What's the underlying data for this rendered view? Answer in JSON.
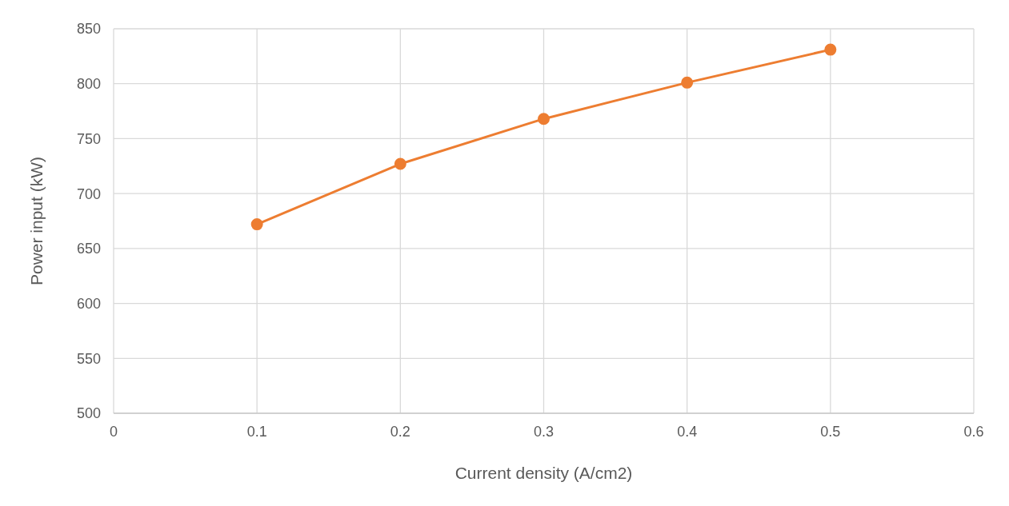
{
  "chart_data": {
    "type": "line",
    "xlabel": "Current density (A/cm2)",
    "ylabel": "Power input (kW)",
    "x": [
      0.1,
      0.2,
      0.3,
      0.4,
      0.5
    ],
    "series": [
      {
        "color": "#ed7d31",
        "values": [
          672,
          727,
          768,
          801,
          831
        ]
      }
    ],
    "xlim": [
      0,
      0.6
    ],
    "xticks": [
      0,
      0.1,
      0.2,
      0.3,
      0.4,
      0.5,
      0.6
    ],
    "ylim": [
      500,
      850
    ],
    "yticks": [
      500,
      550,
      600,
      650,
      700,
      750,
      800,
      850
    ],
    "grid": true,
    "marker": "circle",
    "line_style": "solid"
  }
}
